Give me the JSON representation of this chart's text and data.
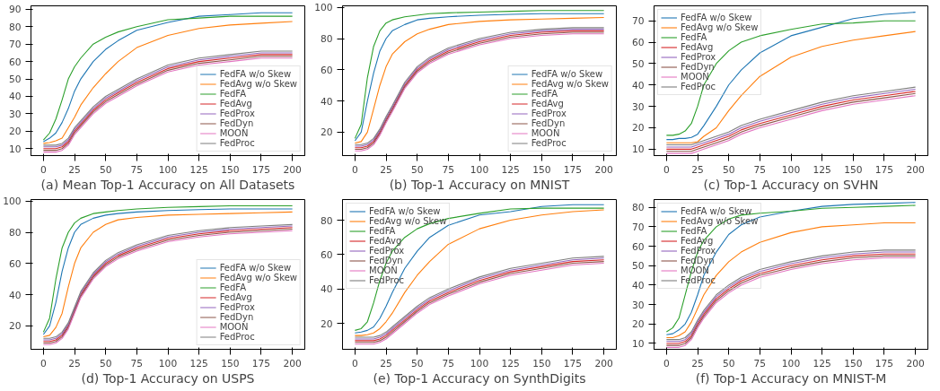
{
  "chart_data": [
    {
      "type": "line",
      "xlabel": "(a) Mean Top-1 Accuracy on All Datasets",
      "x": [
        0,
        5,
        10,
        15,
        20,
        25,
        30,
        40,
        50,
        60,
        75,
        100,
        125,
        150,
        175,
        200
      ],
      "xlim": [
        -10,
        210
      ],
      "ylim": [
        6,
        92
      ],
      "xticks": [
        0,
        25,
        50,
        75,
        100,
        125,
        150,
        175,
        200
      ],
      "yticks": [
        10,
        20,
        30,
        40,
        50,
        60,
        70,
        80,
        90
      ],
      "legend": "bottom right",
      "series": [
        {
          "name": "FedFA w/o Skew",
          "color": "#1f77b4",
          "values": [
            14,
            16,
            19,
            25,
            33,
            43,
            50,
            60,
            67,
            72,
            78,
            82.5,
            86,
            87,
            88,
            88
          ]
        },
        {
          "name": "FedAvg w/o Skew",
          "color": "#ff7f0e",
          "values": [
            13,
            13.5,
            14.5,
            16,
            22,
            28,
            35,
            45,
            53,
            60,
            68,
            75,
            79,
            81,
            82,
            83
          ]
        },
        {
          "name": "FedFA",
          "color": "#2ca02c",
          "values": [
            15,
            19,
            27,
            38,
            50,
            57,
            62,
            70,
            74,
            77,
            80,
            84,
            85,
            86,
            86,
            86
          ]
        },
        {
          "name": "FedAvg",
          "color": "#d62728",
          "values": [
            10,
            10,
            10,
            11,
            14,
            20,
            24,
            32,
            38,
            42,
            48,
            56,
            60,
            62,
            64,
            64
          ]
        },
        {
          "name": "FedProx",
          "color": "#9467bd",
          "values": [
            11,
            11,
            11,
            12,
            15,
            21,
            25,
            33,
            39,
            43,
            49,
            57,
            61,
            63,
            65,
            65
          ]
        },
        {
          "name": "FedDyn",
          "color": "#8c564b",
          "values": [
            9,
            9,
            9,
            10,
            13,
            19,
            23,
            31,
            37,
            41,
            47,
            55,
            59,
            61,
            63,
            63
          ]
        },
        {
          "name": "MOON",
          "color": "#e377c2",
          "values": [
            8,
            8,
            8,
            9,
            12,
            18,
            22,
            30,
            36,
            40,
            46,
            54,
            58,
            60,
            62,
            62
          ]
        },
        {
          "name": "FedProc",
          "color": "#7f7f7f",
          "values": [
            12,
            12,
            12,
            13,
            16,
            22,
            26,
            34,
            40,
            44,
            50,
            58,
            62,
            64,
            66,
            66
          ]
        }
      ]
    },
    {
      "type": "line",
      "xlabel": "(b) Top-1 Accuracy on MNIST",
      "x": [
        0,
        5,
        10,
        15,
        20,
        25,
        30,
        40,
        50,
        60,
        75,
        100,
        125,
        150,
        175,
        200
      ],
      "xlim": [
        -10,
        210
      ],
      "ylim": [
        5,
        101
      ],
      "xticks": [
        0,
        25,
        50,
        75,
        100,
        125,
        150,
        175,
        200
      ],
      "yticks": [
        20,
        40,
        60,
        80,
        100
      ],
      "legend": "bottom right",
      "series": [
        {
          "name": "FedFA w/o Skew",
          "color": "#1f77b4",
          "values": [
            14.5,
            20,
            40,
            58,
            72,
            80,
            85,
            89,
            92,
            93,
            94,
            95,
            95.5,
            96,
            96,
            96
          ]
        },
        {
          "name": "FedAvg w/o Skew",
          "color": "#ff7f0e",
          "values": [
            13,
            14,
            20,
            35,
            50,
            62,
            70,
            78,
            83,
            86,
            89,
            91,
            92,
            92.5,
            93,
            93.5
          ]
        },
        {
          "name": "FedFA",
          "color": "#2ca02c",
          "values": [
            16,
            25,
            55,
            75,
            85,
            90,
            92,
            94,
            95,
            96,
            96.5,
            97,
            97.5,
            98,
            98,
            98
          ]
        },
        {
          "name": "FedAvg",
          "color": "#d62728",
          "values": [
            10,
            10,
            11,
            14,
            20,
            28,
            35,
            50,
            60,
            66,
            72,
            78,
            82,
            84,
            85,
            85
          ]
        },
        {
          "name": "FedProx",
          "color": "#9467bd",
          "values": [
            11,
            11,
            12,
            15,
            21,
            29,
            36,
            51,
            61,
            67,
            73,
            79,
            83,
            85,
            86,
            86
          ]
        },
        {
          "name": "FedDyn",
          "color": "#8c564b",
          "values": [
            9,
            9,
            10,
            13,
            19,
            27,
            34,
            49,
            59,
            65,
            71,
            77,
            81,
            83,
            84,
            84
          ]
        },
        {
          "name": "MOON",
          "color": "#e377c2",
          "values": [
            8,
            8,
            9,
            12,
            18,
            26,
            33,
            48,
            58,
            64,
            70,
            76,
            80,
            82,
            83,
            83
          ]
        },
        {
          "name": "FedProc",
          "color": "#7f7f7f",
          "values": [
            12,
            12,
            13,
            16,
            22,
            30,
            37,
            52,
            62,
            68,
            74,
            80,
            84,
            86,
            87,
            87
          ]
        }
      ]
    },
    {
      "type": "line",
      "xlabel": "(c) Top-1 Accuracy on SVHN",
      "x": [
        0,
        5,
        10,
        15,
        20,
        25,
        30,
        40,
        50,
        60,
        75,
        100,
        125,
        150,
        175,
        200
      ],
      "xlim": [
        -10,
        210
      ],
      "ylim": [
        7,
        77
      ],
      "xticks": [
        0,
        25,
        50,
        75,
        100,
        125,
        150,
        175,
        200
      ],
      "yticks": [
        10,
        20,
        30,
        40,
        50,
        60,
        70
      ],
      "legend": "top left",
      "series": [
        {
          "name": "FedFA w/o Skew",
          "color": "#1f77b4",
          "values": [
            14.5,
            14.5,
            15,
            15,
            15.5,
            17,
            21,
            30,
            40,
            47,
            55,
            63,
            67,
            71,
            73,
            74
          ]
        },
        {
          "name": "FedAvg w/o Skew",
          "color": "#ff7f0e",
          "values": [
            13,
            13,
            13,
            13,
            13,
            13.5,
            16,
            20,
            28,
            35,
            44,
            53,
            58,
            61,
            63,
            65
          ]
        },
        {
          "name": "FedFA",
          "color": "#2ca02c",
          "values": [
            16.5,
            16.5,
            17,
            18.5,
            22,
            30,
            40,
            50,
            56,
            60,
            63,
            66,
            68.5,
            69,
            70,
            70
          ]
        },
        {
          "name": "FedAvg",
          "color": "#d62728",
          "values": [
            10,
            10,
            10,
            10,
            10,
            11,
            12,
            14,
            16,
            19,
            22,
            26,
            30,
            33,
            35,
            37
          ]
        },
        {
          "name": "FedProx",
          "color": "#9467bd",
          "values": [
            11,
            11,
            11,
            11,
            11,
            12,
            13,
            15,
            17,
            20,
            23,
            27,
            31,
            34,
            36,
            38
          ]
        },
        {
          "name": "FedDyn",
          "color": "#8c564b",
          "values": [
            9,
            9,
            9,
            9,
            9,
            10,
            11,
            13,
            15,
            18,
            21,
            25,
            29,
            32,
            34,
            36
          ]
        },
        {
          "name": "MOON",
          "color": "#e377c2",
          "values": [
            8,
            8,
            8,
            8,
            8,
            9,
            10,
            12,
            14,
            17,
            20,
            24,
            28,
            31,
            33,
            35
          ]
        },
        {
          "name": "FedProc",
          "color": "#7f7f7f",
          "values": [
            12,
            12,
            12,
            12,
            12,
            13,
            14,
            16,
            18,
            21,
            24,
            28,
            32,
            35,
            37,
            39
          ]
        }
      ]
    },
    {
      "type": "line",
      "xlabel": "(d) Top-1 Accuracy on USPS",
      "x": [
        0,
        5,
        10,
        15,
        20,
        25,
        30,
        40,
        50,
        60,
        75,
        100,
        125,
        150,
        175,
        200
      ],
      "xlim": [
        -10,
        210
      ],
      "ylim": [
        5,
        101
      ],
      "xticks": [
        0,
        25,
        50,
        75,
        100,
        125,
        150,
        175,
        200
      ],
      "yticks": [
        20,
        40,
        60,
        80,
        100
      ],
      "legend": "bottom right",
      "series": [
        {
          "name": "FedFA w/o Skew",
          "color": "#1f77b4",
          "values": [
            14.5,
            20,
            35,
            55,
            70,
            80,
            85,
            89,
            91,
            92,
            93,
            94,
            94.5,
            95,
            95,
            95
          ]
        },
        {
          "name": "FedAvg w/o Skew",
          "color": "#ff7f0e",
          "values": [
            13,
            14,
            19,
            28,
            45,
            60,
            70,
            80,
            85,
            88,
            89.5,
            91,
            91.5,
            92,
            92.5,
            93
          ]
        },
        {
          "name": "FedFA",
          "color": "#2ca02c",
          "values": [
            16,
            25,
            50,
            70,
            80,
            86,
            89,
            92,
            93,
            94,
            95,
            96,
            96.5,
            97,
            97,
            97
          ]
        },
        {
          "name": "FedAvg",
          "color": "#d62728",
          "values": [
            10,
            10,
            11,
            14,
            20,
            30,
            40,
            52,
            60,
            65,
            70,
            76,
            79,
            81,
            82,
            83
          ]
        },
        {
          "name": "FedProx",
          "color": "#9467bd",
          "values": [
            11,
            11,
            12,
            15,
            21,
            31,
            41,
            53,
            61,
            66,
            71,
            77,
            80,
            82,
            83,
            84
          ]
        },
        {
          "name": "FedDyn",
          "color": "#8c564b",
          "values": [
            9,
            9,
            10,
            13,
            19,
            29,
            39,
            51,
            59,
            64,
            69,
            75,
            78,
            80,
            81,
            82
          ]
        },
        {
          "name": "MOON",
          "color": "#e377c2",
          "values": [
            8,
            8,
            9,
            12,
            18,
            28,
            38,
            50,
            58,
            63,
            68,
            74,
            77,
            79,
            80,
            81
          ]
        },
        {
          "name": "FedProc",
          "color": "#7f7f7f",
          "values": [
            12,
            12,
            13,
            16,
            22,
            32,
            42,
            54,
            62,
            67,
            72,
            78,
            81,
            83,
            84,
            85
          ]
        }
      ]
    },
    {
      "type": "line",
      "xlabel": "(e) Top-1 Accuracy on SynthDigits",
      "x": [
        0,
        5,
        10,
        15,
        20,
        25,
        30,
        40,
        50,
        60,
        75,
        100,
        125,
        150,
        175,
        200
      ],
      "xlim": [
        -10,
        210
      ],
      "ylim": [
        5,
        92
      ],
      "xticks": [
        0,
        25,
        50,
        75,
        100,
        125,
        150,
        175,
        200
      ],
      "yticks": [
        20,
        40,
        60,
        80
      ],
      "legend": "top left",
      "series": [
        {
          "name": "FedFA w/o Skew",
          "color": "#1f77b4",
          "values": [
            14.5,
            15,
            16,
            18,
            23,
            30,
            38,
            52,
            62,
            70,
            77,
            83,
            85,
            88,
            89,
            89
          ]
        },
        {
          "name": "FedAvg w/o Skew",
          "color": "#ff7f0e",
          "values": [
            13,
            13,
            13.5,
            14.5,
            17,
            21,
            26,
            38,
            48,
            56,
            66,
            75,
            80,
            83,
            85,
            86
          ]
        },
        {
          "name": "FedFA",
          "color": "#2ca02c",
          "values": [
            16,
            17,
            21,
            32,
            45,
            55,
            62,
            70,
            75,
            78,
            81,
            84,
            86.5,
            87,
            87,
            87
          ]
        },
        {
          "name": "FedAvg",
          "color": "#d62728",
          "values": [
            10,
            10,
            10,
            10,
            11,
            13,
            16,
            22,
            28,
            33,
            38,
            45,
            50,
            53,
            56,
            57
          ]
        },
        {
          "name": "FedProx",
          "color": "#9467bd",
          "values": [
            11,
            11,
            11,
            11,
            12,
            14,
            17,
            23,
            29,
            34,
            39,
            46,
            51,
            54,
            57,
            58
          ]
        },
        {
          "name": "FedDyn",
          "color": "#8c564b",
          "values": [
            9,
            9,
            9,
            9,
            10,
            12,
            15,
            21,
            27,
            32,
            37,
            44,
            49,
            52,
            55,
            56
          ]
        },
        {
          "name": "MOON",
          "color": "#e377c2",
          "values": [
            8,
            8,
            8,
            8,
            9,
            11,
            14,
            20,
            26,
            31,
            36,
            43,
            48,
            51,
            54,
            55
          ]
        },
        {
          "name": "FedProc",
          "color": "#7f7f7f",
          "values": [
            12,
            12,
            12,
            12,
            13,
            15,
            18,
            24,
            30,
            35,
            40,
            47,
            52,
            55,
            58,
            59
          ]
        }
      ]
    },
    {
      "type": "line",
      "xlabel": "(f) Top-1 Accuracy on MNIST-M",
      "x": [
        0,
        5,
        10,
        15,
        20,
        25,
        30,
        40,
        50,
        60,
        75,
        100,
        125,
        150,
        175,
        200
      ],
      "xlim": [
        -10,
        210
      ],
      "ylim": [
        7,
        84
      ],
      "xticks": [
        0,
        25,
        50,
        75,
        100,
        125,
        150,
        175,
        200
      ],
      "yticks": [
        10,
        20,
        30,
        40,
        50,
        60,
        70,
        80
      ],
      "legend": "top left",
      "series": [
        {
          "name": "FedFA w/o Skew",
          "color": "#1f77b4",
          "values": [
            14.5,
            15,
            17,
            20,
            26,
            35,
            45,
            57,
            66,
            71,
            75,
            78,
            80.5,
            81.5,
            82,
            82.5
          ]
        },
        {
          "name": "FedAvg w/o Skew",
          "color": "#ff7f0e",
          "values": [
            13,
            13,
            14,
            16,
            21,
            28,
            35,
            45,
            52,
            57,
            62,
            67,
            70,
            71,
            72,
            72
          ]
        },
        {
          "name": "FedFA",
          "color": "#2ca02c",
          "values": [
            16,
            18,
            23,
            35,
            47,
            57,
            63,
            70,
            74,
            76,
            77,
            78,
            79.5,
            80,
            80.5,
            81
          ]
        },
        {
          "name": "FedAvg",
          "color": "#d62728",
          "values": [
            10,
            10,
            10,
            11,
            14,
            20,
            25,
            33,
            38,
            42,
            46,
            50,
            53,
            55,
            56,
            56
          ]
        },
        {
          "name": "FedProx",
          "color": "#9467bd",
          "values": [
            11,
            11,
            11,
            12,
            15,
            21,
            26,
            34,
            39,
            43,
            47,
            51,
            54,
            56,
            57,
            57
          ]
        },
        {
          "name": "FedDyn",
          "color": "#8c564b",
          "values": [
            9,
            9,
            9,
            10,
            13,
            19,
            24,
            32,
            37,
            41,
            45,
            49,
            52,
            54,
            55,
            55
          ]
        },
        {
          "name": "MOON",
          "color": "#e377c2",
          "values": [
            8,
            8,
            8,
            9,
            12,
            18,
            23,
            31,
            36,
            40,
            44,
            48,
            51,
            53,
            54,
            54
          ]
        },
        {
          "name": "FedProc",
          "color": "#7f7f7f",
          "values": [
            12,
            12,
            12,
            13,
            16,
            22,
            27,
            35,
            40,
            44,
            48,
            52,
            55,
            57,
            58,
            58
          ]
        }
      ]
    }
  ]
}
